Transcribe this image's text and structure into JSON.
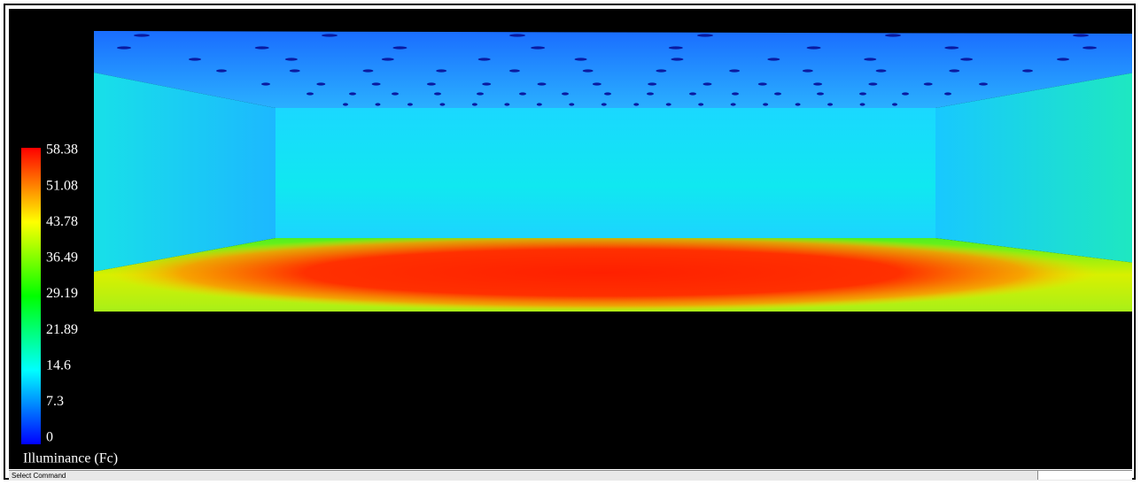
{
  "legend": {
    "title": "Illuminance (Fc)",
    "ticks": [
      58.38,
      51.08,
      43.78,
      36.49,
      29.19,
      21.89,
      14.6,
      7.3,
      0
    ]
  },
  "status_bar": {
    "text": "Select Command"
  }
}
